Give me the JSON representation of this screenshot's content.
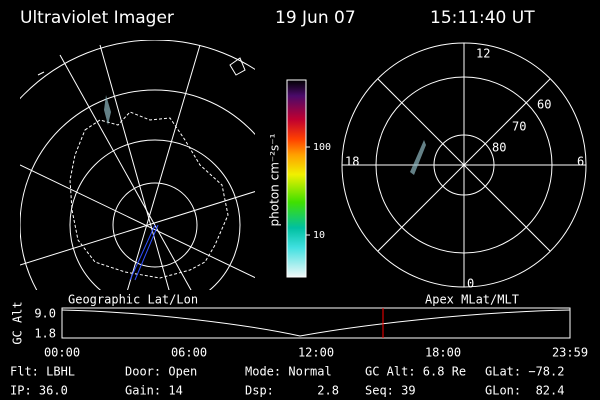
{
  "header": {
    "instrument": "Ultraviolet Imager",
    "date": "19 Jun 07",
    "time": "15:11:40 UT"
  },
  "colorbar": {
    "label": "photon cm⁻²s⁻¹",
    "ticks": [
      "100",
      "10"
    ]
  },
  "left_map": {
    "title": "Geographic Lat/Lon"
  },
  "right_map": {
    "title": "Apex MLat/MLT",
    "mlt_labels": [
      "12",
      "18",
      "6",
      "0"
    ],
    "lat_labels": [
      "60",
      "70",
      "80"
    ]
  },
  "timeline": {
    "axis_label": "GC Alt",
    "yticks": [
      "9.0",
      "1.8"
    ],
    "xticks": [
      "00:00",
      "06:00",
      "12:00",
      "18:00",
      "23:59"
    ]
  },
  "info": [
    [
      "Flt: LBHL",
      "Door: Open",
      "Mode: Normal",
      "GC Alt: 6.8 Re",
      "GLat: −78.2"
    ],
    [
      "IP: 36.0",
      "Gain: 14",
      "Dsp:      2.8",
      "Seq: 39",
      "GLon:  82.4"
    ]
  ]
}
